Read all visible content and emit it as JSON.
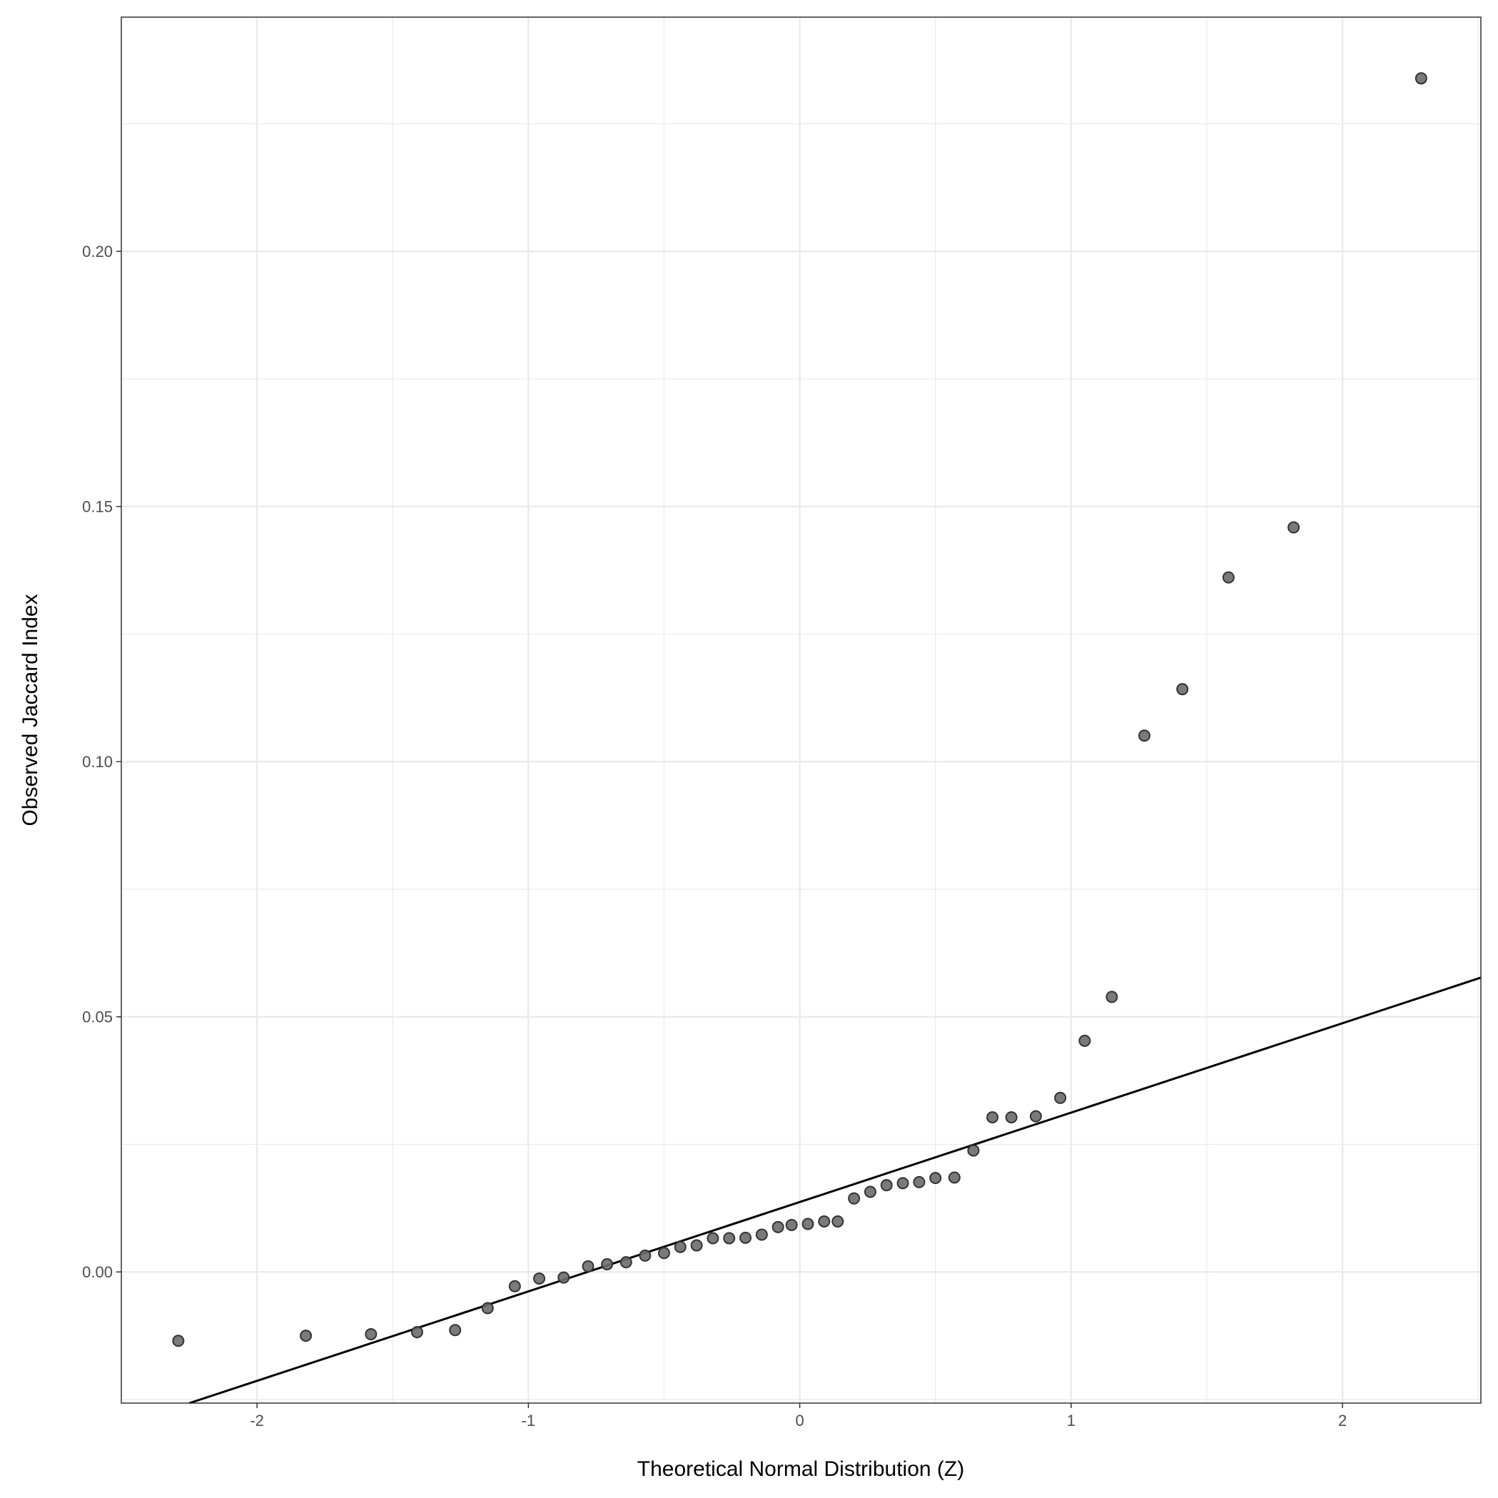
{
  "chart_data": {
    "type": "scatter",
    "title": "",
    "xlabel": "Theoretical Normal Distribution (Z)",
    "ylabel": "Observed Jaccard Index",
    "xlim": [
      -2.5,
      2.51
    ],
    "ylim": [
      -0.0257,
      0.2459
    ],
    "grid": true,
    "x_ticks": [
      -2,
      -1,
      0,
      1,
      2
    ],
    "x_tick_labels": [
      "-2",
      "-1",
      "0",
      "1",
      "2"
    ],
    "y_ticks": [
      0.0,
      0.05,
      0.1,
      0.15,
      0.2
    ],
    "y_tick_labels": [
      "0.00",
      "0.05",
      "0.10",
      "0.15",
      "0.20"
    ],
    "points": {
      "x": [
        -2.29,
        -1.82,
        -1.58,
        -1.41,
        -1.27,
        -1.15,
        -1.05,
        -0.96,
        -0.87,
        -0.78,
        -0.71,
        -0.64,
        -0.57,
        -0.5,
        -0.44,
        -0.38,
        -0.32,
        -0.26,
        -0.2,
        -0.14,
        -0.08,
        -0.03,
        0.03,
        0.09,
        0.14,
        0.2,
        0.26,
        0.32,
        0.38,
        0.44,
        0.5,
        0.57,
        0.64,
        0.71,
        0.78,
        0.87,
        0.96,
        1.05,
        1.15,
        1.27,
        1.41,
        1.58,
        1.82,
        2.29
      ],
      "y": [
        -0.0135,
        -0.0125,
        -0.0122,
        -0.0118,
        -0.0114,
        -0.0071,
        -0.0028,
        -0.0013,
        -0.0011,
        0.0011,
        0.0015,
        0.0019,
        0.0032,
        0.0037,
        0.0049,
        0.0052,
        0.0066,
        0.0066,
        0.0067,
        0.0073,
        0.0088,
        0.0092,
        0.0094,
        0.0099,
        0.0099,
        0.0144,
        0.0157,
        0.017,
        0.0174,
        0.0176,
        0.0184,
        0.0185,
        0.0238,
        0.0303,
        0.0303,
        0.0305,
        0.0341,
        0.0453,
        0.0539,
        0.1051,
        0.1142,
        0.1361,
        0.1459,
        0.2339
      ]
    },
    "reference_line": {
      "intercept": 0.0137,
      "slope": 0.01752
    },
    "colors": {
      "point_fill": "#6b6b6b",
      "point_stroke": "#333333",
      "line": "#000000",
      "grid": "#ebebeb"
    }
  }
}
